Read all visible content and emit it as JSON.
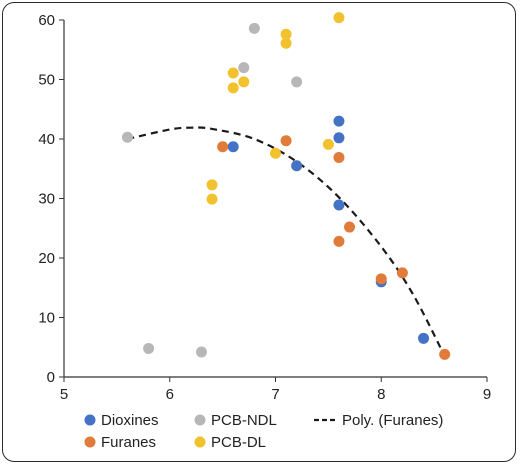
{
  "chart_data": {
    "type": "scatter",
    "title": "",
    "xlabel": "",
    "ylabel": "",
    "xlim": [
      5,
      9
    ],
    "ylim": [
      0,
      60
    ],
    "xticks": [
      5,
      6,
      7,
      8,
      9
    ],
    "yticks": [
      0,
      10,
      20,
      30,
      40,
      50,
      60
    ],
    "grid": false,
    "legend_position": "bottom",
    "series": [
      {
        "name": "Dioxines",
        "color": "#4472c4",
        "points": [
          [
            6.6,
            38.7
          ],
          [
            7.2,
            35.5
          ],
          [
            7.6,
            43.0
          ],
          [
            7.6,
            40.2
          ],
          [
            7.6,
            28.9
          ],
          [
            8.0,
            16.0
          ],
          [
            8.4,
            6.5
          ]
        ]
      },
      {
        "name": "Furanes",
        "color": "#e07b39",
        "points": [
          [
            6.5,
            38.7
          ],
          [
            7.1,
            39.7
          ],
          [
            7.6,
            36.9
          ],
          [
            7.7,
            25.2
          ],
          [
            7.6,
            22.8
          ],
          [
            8.0,
            16.5
          ],
          [
            8.2,
            17.5
          ],
          [
            8.6,
            3.8
          ]
        ]
      },
      {
        "name": "PCB-NDL",
        "color": "#b7b7b7",
        "points": [
          [
            5.6,
            40.3
          ],
          [
            6.8,
            58.6
          ],
          [
            6.7,
            52.0
          ],
          [
            7.2,
            49.6
          ],
          [
            5.8,
            4.8
          ],
          [
            6.3,
            4.2
          ]
        ]
      },
      {
        "name": "PCB-DL",
        "color": "#f2c12e",
        "points": [
          [
            7.6,
            60.4
          ],
          [
            7.1,
            57.6
          ],
          [
            7.1,
            56.1
          ],
          [
            6.6,
            51.1
          ],
          [
            6.7,
            49.6
          ],
          [
            6.6,
            48.6
          ],
          [
            7.0,
            37.6
          ],
          [
            7.5,
            39.1
          ],
          [
            6.4,
            32.3
          ],
          [
            6.4,
            29.9
          ]
        ]
      }
    ],
    "trendline": {
      "name": "Poly. (Furanes)",
      "style": "dashed",
      "color": "#1a1a1a",
      "points": [
        [
          5.6,
          40.0
        ],
        [
          6.0,
          41.6
        ],
        [
          6.2,
          41.9
        ],
        [
          6.4,
          41.7
        ],
        [
          6.8,
          40.0
        ],
        [
          7.2,
          36.2
        ],
        [
          7.6,
          30.2
        ],
        [
          8.0,
          21.9
        ],
        [
          8.3,
          13.9
        ],
        [
          8.6,
          3.5
        ]
      ]
    },
    "legend": [
      {
        "label": "Dioxines",
        "marker": "dot",
        "color": "#4472c4"
      },
      {
        "label": "PCB-NDL",
        "marker": "dot",
        "color": "#b7b7b7"
      },
      {
        "label": "Poly. (Furanes)",
        "marker": "dash",
        "color": "#1a1a1a"
      },
      {
        "label": "Furanes",
        "marker": "dot",
        "color": "#e07b39"
      },
      {
        "label": "PCB-DL",
        "marker": "dot",
        "color": "#f2c12e"
      }
    ]
  }
}
